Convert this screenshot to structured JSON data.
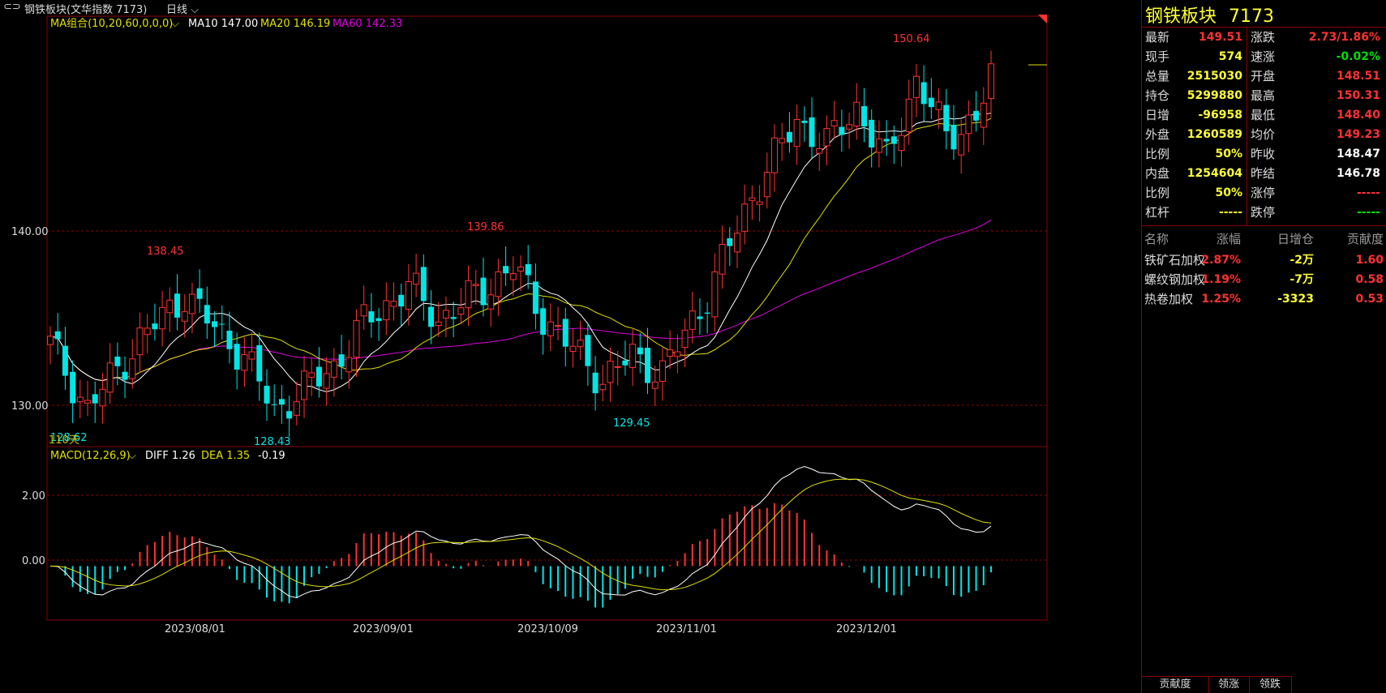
{
  "header": {
    "title": "钢铁板块(文华指数 7173)",
    "period": "日线"
  },
  "ma_legend": {
    "name": "MA组合(10,20,60,0,0,0)",
    "ma10": "MA10 147.00",
    "ma20": "MA20 146.19",
    "ma60": "MA60 142.33"
  },
  "macd_legend": {
    "name": "MACD(12,26,9)",
    "diff": "DIFF 1.26",
    "dea": "DEA 1.35",
    "macd": "-0.19"
  },
  "price_axis": [
    "140.00",
    "130.00"
  ],
  "macd_axis": [
    "2.00",
    "0.00"
  ],
  "date_axis": [
    "2023/08/01",
    "2023/09/01",
    "2023/10/09",
    "2023/11/01",
    "2023/12/01"
  ],
  "annotations": {
    "high1": "138.45",
    "high2": "139.86",
    "high3": "150.64",
    "low1": "128.43",
    "low2": "129.45",
    "low0": "128.62",
    "days": "110天"
  },
  "colors": {
    "up": "#ff3232",
    "down": "#00e5e5",
    "ma10": "#ffffff",
    "ma20": "#e0e000",
    "ma60": "#e000e0",
    "accent": "#ffff33",
    "border": "#8b0000"
  },
  "chart_data": {
    "type": "candlestick",
    "last_close": 149.51,
    "ma_current": {
      "MA10": 147.0,
      "MA20": 146.19,
      "MA60": 142.33
    },
    "macd_current": {
      "DIFF": 1.26,
      "DEA": 1.35,
      "MACD": -0.19
    },
    "price_ylim": [
      127.5,
      152.4
    ],
    "macd_ylim": [
      -1.7,
      3.3
    ]
  },
  "quote": {
    "name": "钢铁板块",
    "code": "7173",
    "left": [
      {
        "label": "最新",
        "value": "149.51",
        "color": "#ff3232"
      },
      {
        "label": "现手",
        "value": "574",
        "color": "#ffff33"
      },
      {
        "label": "总量",
        "value": "2515030",
        "color": "#ffff33"
      },
      {
        "label": "持仓",
        "value": "5299880",
        "color": "#ffff33"
      },
      {
        "label": "日增",
        "value": "-96958",
        "color": "#ffff33"
      },
      {
        "label": "外盘",
        "value": "1260589",
        "color": "#ffff33"
      },
      {
        "label": "比例",
        "value": "50%",
        "color": "#ffff33"
      },
      {
        "label": "内盘",
        "value": "1254604",
        "color": "#ffff33"
      },
      {
        "label": "比例",
        "value": "50%",
        "color": "#ffff33"
      },
      {
        "label": "杠杆",
        "value": "-----",
        "color": "#ffff33"
      }
    ],
    "right": [
      {
        "label": "涨跌",
        "value": "2.73/1.86%",
        "color": "#ff3232"
      },
      {
        "label": "速涨",
        "value": "-0.02%",
        "color": "#00e000"
      },
      {
        "label": "开盘",
        "value": "148.51",
        "color": "#ff3232"
      },
      {
        "label": "最高",
        "value": "150.31",
        "color": "#ff3232"
      },
      {
        "label": "最低",
        "value": "148.40",
        "color": "#ff3232"
      },
      {
        "label": "均价",
        "value": "149.23",
        "color": "#ff3232"
      },
      {
        "label": "昨收",
        "value": "148.47",
        "color": "#ffffff"
      },
      {
        "label": "昨结",
        "value": "146.78",
        "color": "#ffffff"
      },
      {
        "label": "涨停",
        "value": "-----",
        "color": "#ff3232"
      },
      {
        "label": "跌停",
        "value": "-----",
        "color": "#00e000"
      }
    ]
  },
  "contrib": {
    "headers": [
      "名称",
      "涨幅",
      "日增仓",
      "贡献度"
    ],
    "rows": [
      {
        "name": "铁矿石加权",
        "chg": "2.87%",
        "oi": "-2万",
        "contrib": "1.60"
      },
      {
        "name": "螺纹钢加权",
        "chg": "1.19%",
        "oi": "-7万",
        "contrib": "0.58"
      },
      {
        "name": "热卷加权",
        "chg": "1.25%",
        "oi": "-3323",
        "contrib": "0.53"
      }
    ]
  },
  "bottom_tabs": [
    "贡献度",
    "领涨",
    "领跌"
  ]
}
